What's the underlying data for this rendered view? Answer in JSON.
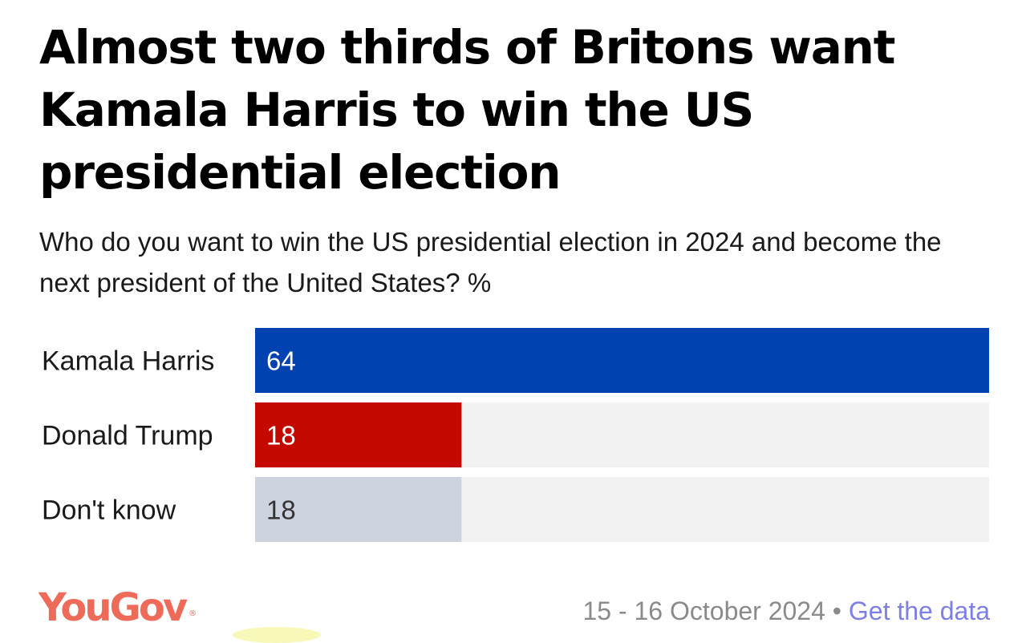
{
  "title": "Almost two thirds of Britons want Kamala Harris to win the US presidential election",
  "subtitle": "Who do you want to win the US presidential election in 2024 and become the next president of the United States? %",
  "chart_data": {
    "type": "bar",
    "orientation": "horizontal",
    "categories": [
      "Kamala Harris",
      "Donald Trump",
      "Don't know"
    ],
    "values": [
      64,
      18,
      18
    ],
    "xlim": [
      0,
      64
    ],
    "colors": [
      "#0042b0",
      "#c40a00",
      "#cdd2df"
    ],
    "value_label_colors": [
      "#ffffff",
      "#ffffff",
      "#333333"
    ],
    "track_color": "#f2f2f2",
    "title": "Almost two thirds of Britons want Kamala Harris to win the US presidential election",
    "xlabel": "",
    "ylabel": ""
  },
  "footer": {
    "logo_text": "YouGov",
    "logo_mark": "®",
    "logo_color": "#ee6b5a",
    "date": "15 - 16 October 2024",
    "separator": "•",
    "link_label": "Get the data"
  }
}
